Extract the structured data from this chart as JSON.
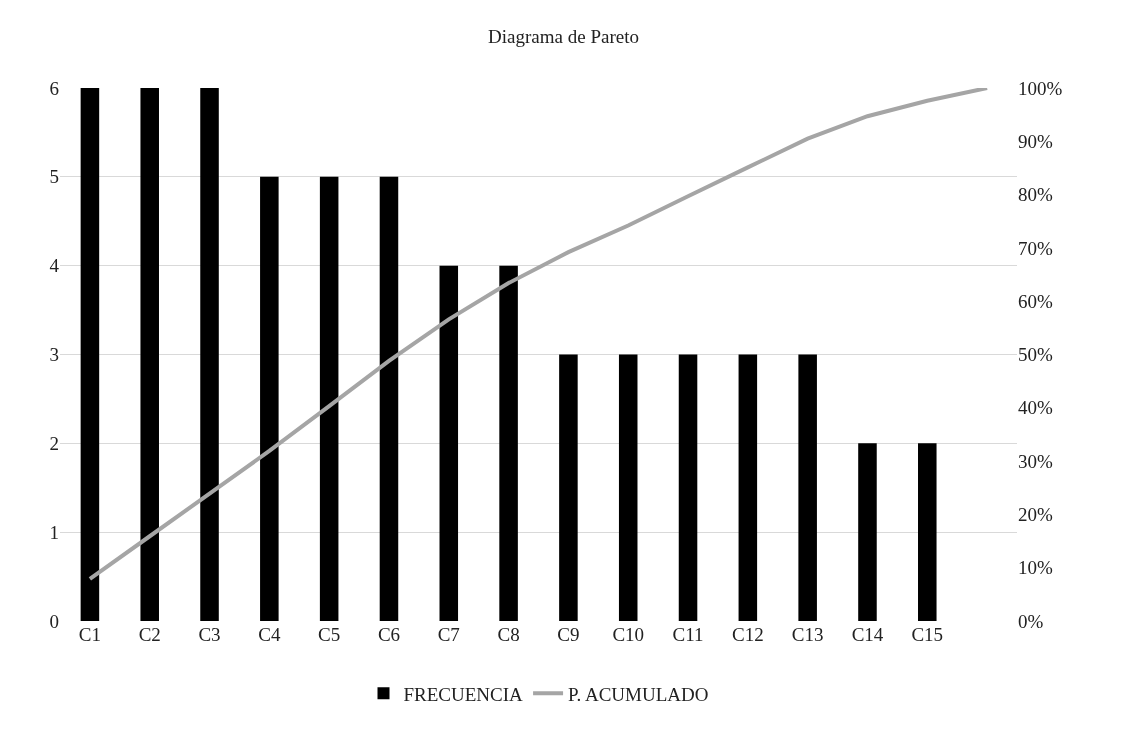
{
  "chart_data": {
    "type": "bar",
    "title": "Diagrama de Pareto",
    "categories": [
      "C1",
      "C2",
      "C3",
      "C4",
      "C5",
      "C6",
      "C7",
      "C8",
      "C9",
      "C10",
      "C11",
      "C12",
      "C13",
      "C14",
      "C15",
      null
    ],
    "series": [
      {
        "name": "FRECUENCIA",
        "color": "#000000",
        "values": [
          6,
          6,
          6,
          5,
          5,
          5,
          4,
          4,
          3,
          3,
          3,
          3,
          3,
          2,
          2,
          null
        ]
      },
      {
        "name": "P. ACUMULADO",
        "type": "line",
        "axis": "y2",
        "color": "#a5a5a5",
        "values": [
          7.9,
          15.9,
          23.9,
          31.9,
          40.3,
          48.8,
          56.6,
          63.4,
          69.2,
          74.2,
          79.7,
          85.1,
          90.5,
          94.7,
          97.6,
          100
        ]
      }
    ],
    "ylim": [
      0,
      6
    ],
    "yticks": [
      0,
      1,
      2,
      3,
      4,
      5,
      6
    ],
    "y2lim": [
      0,
      100
    ],
    "y2ticks": [
      {
        "value": 0,
        "label": "0%"
      },
      {
        "value": 10,
        "label": "10%"
      },
      {
        "value": 20,
        "label": "20%"
      },
      {
        "value": 30,
        "label": "30%"
      },
      {
        "value": 40,
        "label": "40%"
      },
      {
        "value": 50,
        "label": "50%"
      },
      {
        "value": 60,
        "label": "60%"
      },
      {
        "value": 70,
        "label": "70%"
      },
      {
        "value": 80,
        "label": "80%"
      },
      {
        "value": 90,
        "label": "90%"
      },
      {
        "value": 100,
        "label": "100%"
      }
    ],
    "grid": "y",
    "legend": "bottom",
    "line_style": "solid",
    "marker": "none"
  }
}
